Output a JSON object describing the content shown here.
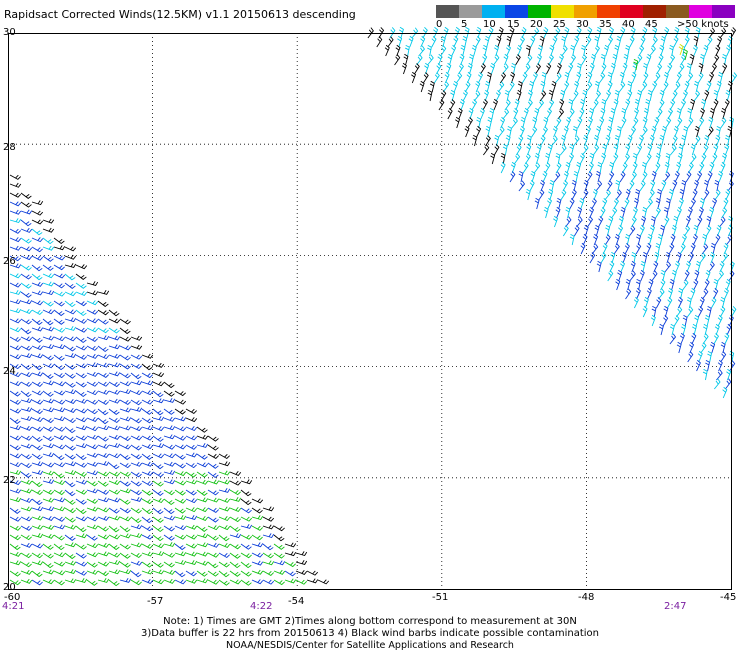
{
  "title": "Rapidsact Corrected Winds(12.5KM) v1.1 20150613 descending",
  "legend": {
    "colors": [
      "#555555",
      "#9a9a9a",
      "#00b0f0",
      "#0a46e6",
      "#00b400",
      "#f0e000",
      "#f0a000",
      "#f04000",
      "#e00020",
      "#a02000",
      "#8a5a20",
      "#e000e0",
      "#8a00c0"
    ],
    "labels": [
      "0",
      "5",
      "10",
      "15",
      "20",
      "25",
      "30",
      "35",
      "40",
      "45",
      ">50 knots"
    ]
  },
  "lat_labels": [
    "30",
    "28",
    "26",
    "24",
    "22",
    "20"
  ],
  "lon_labels": [
    "-60",
    "-57",
    "-54",
    "-51",
    "-48",
    "-45"
  ],
  "time_labels": [
    "4:21",
    "4:22",
    "2:47"
  ],
  "notes": {
    "line1": "Note: 1) Times are GMT 2)Times along bottom correspond to measurement at 30N",
    "line2": "3)Data buffer is 22 hrs from 20150613 4) Black wind barbs indicate possible contamination",
    "line3": "NOAA/NESDIS/Center for Satellite Applications and Research"
  },
  "wind_colors": {
    "black": "#000000",
    "cyan": "#00c8e8",
    "blue": "#0a3cd8",
    "green": "#10c010",
    "yellow": "#e0e000"
  }
}
